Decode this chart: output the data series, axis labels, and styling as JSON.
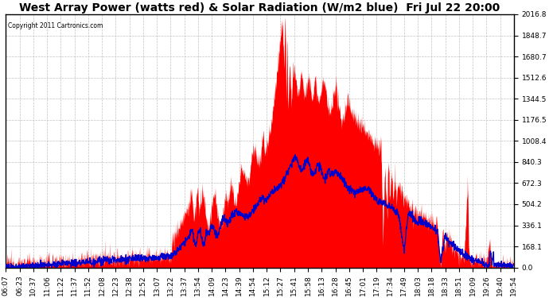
{
  "title": "West Array Power (watts red) & Solar Radiation (W/m2 blue)  Fri Jul 22 20:00",
  "copyright": "Copyright 2011 Cartronics.com",
  "ylabel_right_values": [
    0.0,
    168.1,
    336.1,
    504.2,
    672.3,
    840.3,
    1008.4,
    1176.5,
    1344.5,
    1512.6,
    1680.7,
    1848.7,
    2016.8
  ],
  "ylim": [
    0,
    2016.8
  ],
  "background_color": "#ffffff",
  "plot_bg_color": "#ffffff",
  "grid_color": "#bbbbbb",
  "red_color": "#ff0000",
  "blue_color": "#0000cc",
  "title_fontsize": 10,
  "tick_fontsize": 6.5,
  "xtick_labels": [
    "06:07",
    "06:23",
    "10:37",
    "11:06",
    "11:22",
    "11:37",
    "11:52",
    "12:08",
    "12:23",
    "12:38",
    "12:52",
    "13:07",
    "13:22",
    "13:37",
    "13:54",
    "14:09",
    "14:23",
    "14:39",
    "14:54",
    "15:12",
    "15:27",
    "15:41",
    "15:58",
    "16:13",
    "16:28",
    "16:45",
    "17:01",
    "17:19",
    "17:34",
    "17:49",
    "18:03",
    "18:18",
    "18:33",
    "18:51",
    "19:09",
    "19:26",
    "19:40",
    "19:54"
  ]
}
